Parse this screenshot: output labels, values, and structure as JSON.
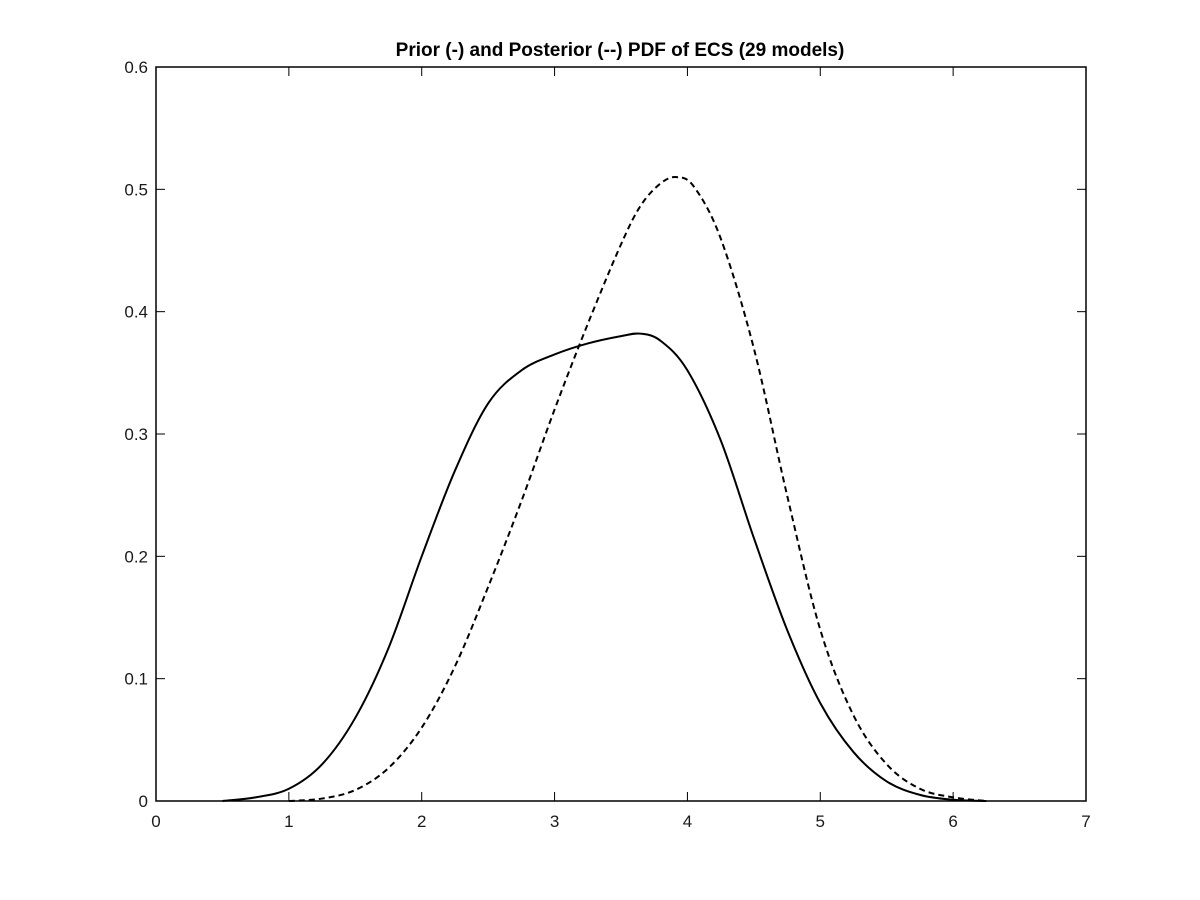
{
  "chart_data": {
    "type": "line",
    "title": "Prior (-) and Posterior (--) PDF of ECS (29 models)",
    "xlabel": "",
    "ylabel": "",
    "xlim": [
      0,
      7
    ],
    "ylim": [
      0,
      0.6
    ],
    "xticks": [
      0,
      1,
      2,
      3,
      4,
      5,
      6,
      7
    ],
    "yticks": [
      0,
      0.1,
      0.2,
      0.3,
      0.4,
      0.5,
      0.6
    ],
    "xtick_labels": [
      "0",
      "1",
      "2",
      "3",
      "4",
      "5",
      "6",
      "7"
    ],
    "ytick_labels": [
      "0",
      "0.1",
      "0.2",
      "0.3",
      "0.4",
      "0.5",
      "0.6"
    ],
    "grid": false,
    "series": [
      {
        "line_style": "solid",
        "color": "#000000",
        "x": [
          0.5,
          0.75,
          1.0,
          1.25,
          1.5,
          1.75,
          2.0,
          2.25,
          2.5,
          2.75,
          3.0,
          3.25,
          3.5,
          3.65,
          3.8,
          4.0,
          4.25,
          4.5,
          4.75,
          5.0,
          5.25,
          5.5,
          5.75,
          6.0,
          6.25
        ],
        "y": [
          0.0,
          0.003,
          0.01,
          0.03,
          0.068,
          0.125,
          0.2,
          0.27,
          0.325,
          0.352,
          0.365,
          0.374,
          0.38,
          0.382,
          0.376,
          0.352,
          0.295,
          0.215,
          0.14,
          0.08,
          0.04,
          0.016,
          0.005,
          0.001,
          0.0
        ]
      },
      {
        "line_style": "dashed",
        "color": "#000000",
        "x": [
          1.0,
          1.25,
          1.5,
          1.75,
          2.0,
          2.25,
          2.5,
          2.75,
          3.0,
          3.25,
          3.5,
          3.65,
          3.8,
          3.92,
          4.05,
          4.25,
          4.5,
          4.75,
          5.0,
          5.25,
          5.5,
          5.75,
          6.0,
          6.25
        ],
        "y": [
          0.0,
          0.002,
          0.009,
          0.027,
          0.06,
          0.11,
          0.175,
          0.245,
          0.32,
          0.39,
          0.455,
          0.487,
          0.505,
          0.51,
          0.502,
          0.46,
          0.37,
          0.25,
          0.14,
          0.07,
          0.03,
          0.01,
          0.003,
          0.0
        ]
      }
    ]
  }
}
